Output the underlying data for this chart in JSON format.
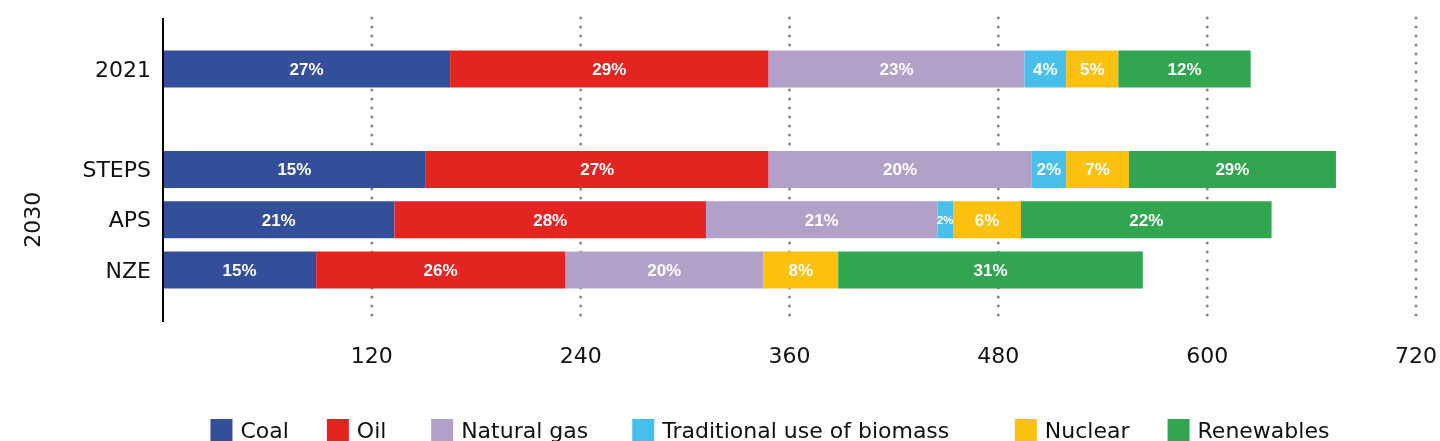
{
  "chart_data": {
    "type": "bar",
    "orientation": "horizontal",
    "stacked": true,
    "categories": [
      "2021",
      null,
      "STEPS",
      "APS",
      "NZE"
    ],
    "ylabel": "2030",
    "xlim": [
      0,
      720
    ],
    "xticks": [
      120,
      240,
      360,
      480,
      600,
      720
    ],
    "grid": "x",
    "legend": "bottom",
    "series": [
      {
        "name": "Coal",
        "color": "#344f9a",
        "values": [
          165,
          null,
          151,
          133,
          88
        ]
      },
      {
        "name": "Oil",
        "color": "#e32522",
        "values": [
          183,
          null,
          197,
          179,
          143
        ]
      },
      {
        "name": "Natural gas",
        "color": "#b1a1c8",
        "values": [
          147,
          null,
          151,
          133,
          114
        ]
      },
      {
        "name": "Traditional use of biomass",
        "color": "#48bfea",
        "values": [
          24,
          null,
          20,
          9,
          null
        ]
      },
      {
        "name": "Nuclear",
        "color": "#fbc10e",
        "values": [
          30,
          null,
          36,
          39,
          43
        ]
      },
      {
        "name": "Renewables",
        "color": "#31a550",
        "values": [
          76,
          null,
          119,
          144,
          175
        ]
      }
    ],
    "annotations": [
      "27%",
      "29%",
      "23%",
      "4%",
      "5%",
      "12%",
      "15%",
      "27%",
      "20%",
      "2%",
      "7%",
      "29%",
      "21%",
      "28%",
      "21%",
      "2%",
      "6%",
      "22%",
      "15%",
      "26%",
      "20%",
      "8%",
      "31%"
    ]
  }
}
